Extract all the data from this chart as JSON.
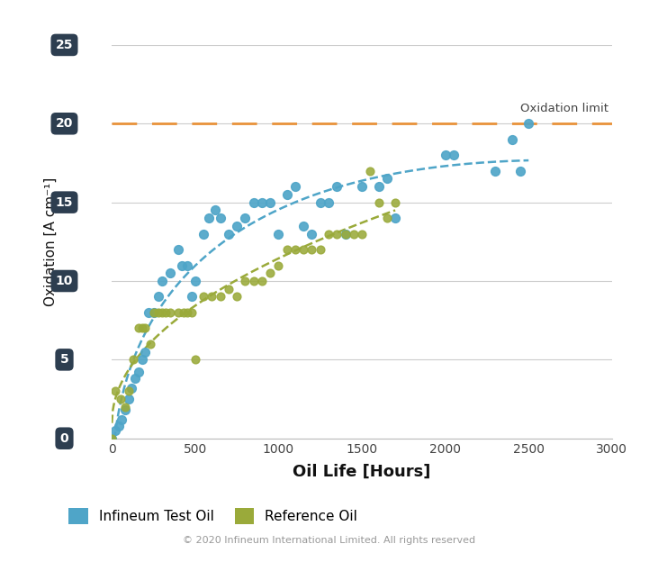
{
  "infineum_x": [
    0,
    20,
    40,
    60,
    80,
    100,
    120,
    140,
    160,
    180,
    200,
    220,
    250,
    280,
    300,
    350,
    400,
    420,
    450,
    480,
    500,
    550,
    580,
    620,
    650,
    700,
    750,
    800,
    850,
    900,
    950,
    1000,
    1050,
    1100,
    1150,
    1200,
    1250,
    1300,
    1350,
    1400,
    1500,
    1600,
    1650,
    1700,
    2000,
    2050,
    2300,
    2400,
    2500,
    2450
  ],
  "infineum_y": [
    0,
    0.5,
    0.8,
    1.2,
    1.8,
    2.5,
    3.2,
    3.8,
    4.2,
    5.0,
    5.5,
    8.0,
    8.0,
    9.0,
    10.0,
    10.5,
    12.0,
    11.0,
    11.0,
    9.0,
    10.0,
    13.0,
    14.0,
    14.5,
    14.0,
    13.0,
    13.5,
    14.0,
    15.0,
    15.0,
    15.0,
    13.0,
    15.5,
    16.0,
    13.5,
    13.0,
    15.0,
    15.0,
    16.0,
    13.0,
    16.0,
    16.0,
    16.5,
    14.0,
    18.0,
    18.0,
    17.0,
    19.0,
    20.0,
    17.0
  ],
  "reference_x": [
    0,
    20,
    50,
    80,
    100,
    130,
    160,
    180,
    200,
    230,
    250,
    280,
    300,
    320,
    350,
    400,
    430,
    450,
    480,
    500,
    550,
    600,
    650,
    700,
    750,
    800,
    850,
    900,
    950,
    1000,
    1050,
    1100,
    1150,
    1200,
    1250,
    1300,
    1350,
    1400,
    1450,
    1500,
    1550,
    1600,
    1650,
    1700
  ],
  "reference_y": [
    0,
    3.0,
    2.5,
    2.0,
    3.0,
    5.0,
    7.0,
    7.0,
    7.0,
    6.0,
    8.0,
    8.0,
    8.0,
    8.0,
    8.0,
    8.0,
    8.0,
    8.0,
    8.0,
    5.0,
    9.0,
    9.0,
    9.0,
    9.5,
    9.0,
    10.0,
    10.0,
    10.0,
    10.5,
    11.0,
    12.0,
    12.0,
    12.0,
    12.0,
    12.0,
    13.0,
    13.0,
    13.0,
    13.0,
    13.0,
    17.0,
    15.0,
    14.0,
    15.0
  ],
  "oxidation_limit": 20,
  "xlim": [
    0,
    3000
  ],
  "ylim": [
    0,
    25
  ],
  "xticks": [
    0,
    500,
    1000,
    1500,
    2000,
    2500,
    3000
  ],
  "yticks": [
    0,
    5,
    10,
    15,
    20,
    25
  ],
  "xlabel": "Oil Life [Hours]",
  "ylabel": "Oxidation [A cm⁻¹]",
  "infineum_color": "#4fa5c8",
  "reference_color": "#9aaa3a",
  "limit_color": "#e8923a",
  "tick_label_bg": "#2d3e50",
  "tick_label_fg": "#ffffff",
  "oxidation_limit_label": "Oxidation limit",
  "legend_infineum": "Infineum Test Oil",
  "legend_reference": "Reference Oil",
  "copyright": "© 2020 Infineum International Limited. All rights reserved",
  "bg_color": "#ffffff",
  "grid_color": "#cccccc"
}
